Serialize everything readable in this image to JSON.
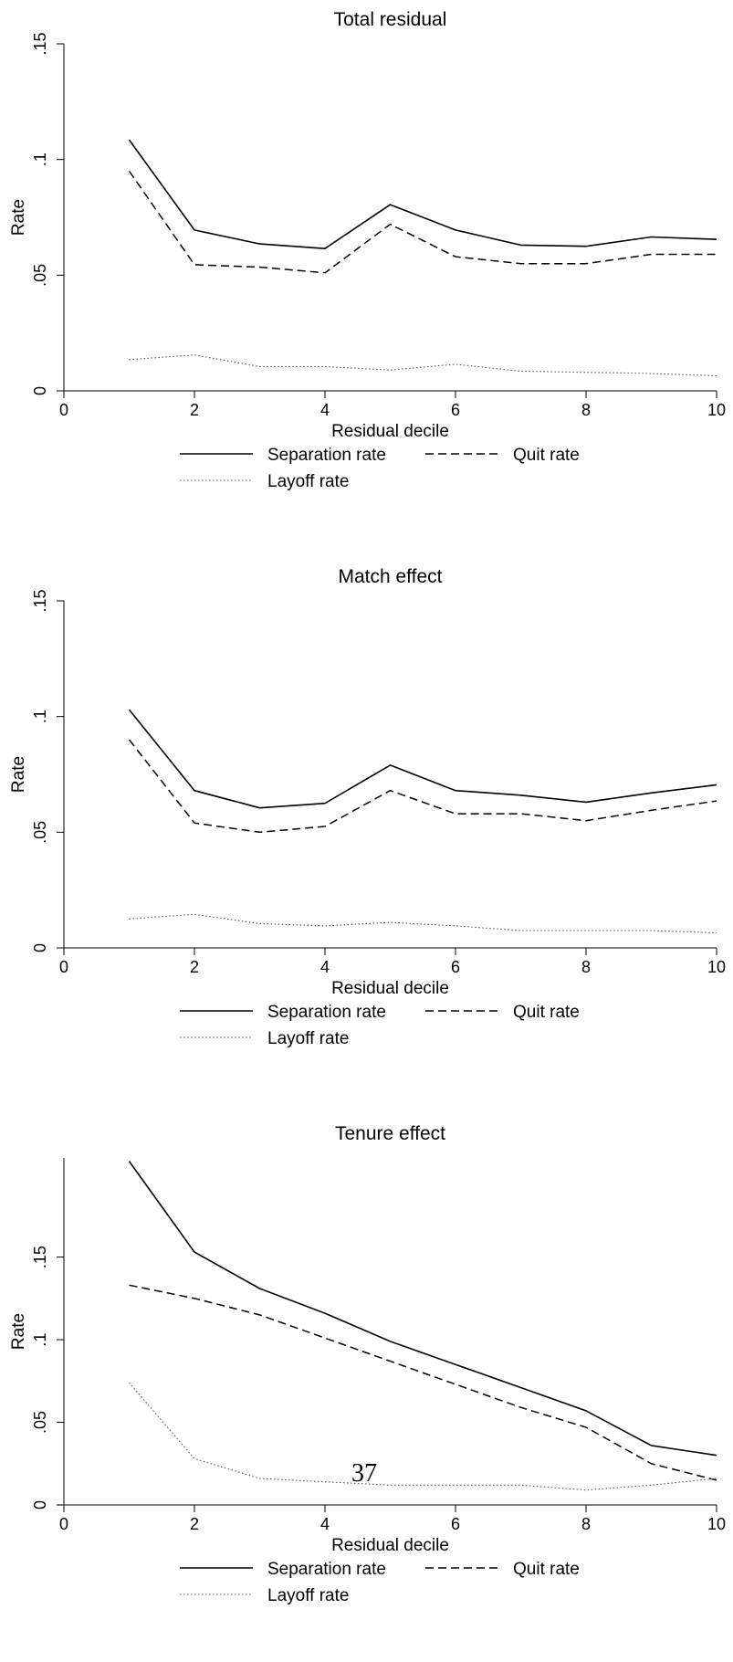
{
  "page_number": "37",
  "chart_data": [
    {
      "type": "line",
      "title": "Total residual",
      "xlabel": "Residual decile",
      "ylabel": "Rate",
      "xlim": [
        0,
        10
      ],
      "ylim": [
        0,
        0.15
      ],
      "x_ticks": [
        0,
        2,
        4,
        6,
        8,
        10
      ],
      "x_tick_labels": [
        "0",
        "2",
        "4",
        "6",
        "8",
        "10"
      ],
      "y_ticks": [
        0,
        0.05,
        0.1,
        0.15
      ],
      "y_tick_labels": [
        "0",
        ".05",
        ".1",
        ".15"
      ],
      "grid": false,
      "legend_position": "bottom",
      "x": [
        1,
        2,
        3,
        4,
        5,
        6,
        7,
        8,
        9,
        10
      ],
      "series": [
        {
          "name": "Separation rate",
          "style": "solid",
          "values": [
            0.1085,
            0.0695,
            0.0635,
            0.0615,
            0.0805,
            0.0695,
            0.063,
            0.0625,
            0.0665,
            0.0655
          ]
        },
        {
          "name": "Quit rate",
          "style": "dashed",
          "values": [
            0.095,
            0.0545,
            0.0535,
            0.051,
            0.072,
            0.058,
            0.055,
            0.055,
            0.059,
            0.059
          ]
        },
        {
          "name": "Layoff rate",
          "style": "dotted",
          "values": [
            0.0135,
            0.0155,
            0.0105,
            0.0105,
            0.009,
            0.0115,
            0.0085,
            0.008,
            0.0075,
            0.0065
          ]
        }
      ]
    },
    {
      "type": "line",
      "title": "Match effect",
      "xlabel": "Residual decile",
      "ylabel": "Rate",
      "xlim": [
        0,
        10
      ],
      "ylim": [
        0,
        0.15
      ],
      "x_ticks": [
        0,
        2,
        4,
        6,
        8,
        10
      ],
      "x_tick_labels": [
        "0",
        "2",
        "4",
        "6",
        "8",
        "10"
      ],
      "y_ticks": [
        0,
        0.05,
        0.1,
        0.15
      ],
      "y_tick_labels": [
        "0",
        ".05",
        ".1",
        ".15"
      ],
      "grid": false,
      "legend_position": "bottom",
      "x": [
        1,
        2,
        3,
        4,
        5,
        6,
        7,
        8,
        9,
        10
      ],
      "series": [
        {
          "name": "Separation rate",
          "style": "solid",
          "values": [
            0.103,
            0.068,
            0.0605,
            0.0625,
            0.079,
            0.068,
            0.066,
            0.063,
            0.067,
            0.0705
          ]
        },
        {
          "name": "Quit rate",
          "style": "dashed",
          "values": [
            0.09,
            0.054,
            0.05,
            0.0525,
            0.068,
            0.058,
            0.058,
            0.055,
            0.0595,
            0.0635
          ]
        },
        {
          "name": "Layoff rate",
          "style": "dotted",
          "values": [
            0.0125,
            0.0145,
            0.0105,
            0.0095,
            0.011,
            0.0095,
            0.0075,
            0.0075,
            0.0075,
            0.0065
          ]
        }
      ]
    },
    {
      "type": "line",
      "title": "Tenure effect",
      "xlabel": "Residual decile",
      "ylabel": "Rate",
      "xlim": [
        0,
        10
      ],
      "ylim": [
        0,
        0.21
      ],
      "x_ticks": [
        0,
        2,
        4,
        6,
        8,
        10
      ],
      "x_tick_labels": [
        "0",
        "2",
        "4",
        "6",
        "8",
        "10"
      ],
      "y_ticks": [
        0,
        0.05,
        0.1,
        0.15
      ],
      "y_tick_labels": [
        "0",
        ".05",
        ".1",
        ".15"
      ],
      "grid": false,
      "legend_position": "bottom",
      "x": [
        1,
        2,
        3,
        4,
        5,
        6,
        7,
        8,
        9,
        10
      ],
      "series": [
        {
          "name": "Separation rate",
          "style": "solid",
          "values": [
            0.208,
            0.153,
            0.131,
            0.116,
            0.099,
            0.085,
            0.071,
            0.057,
            0.036,
            0.03
          ]
        },
        {
          "name": "Quit rate",
          "style": "dashed",
          "values": [
            0.133,
            0.125,
            0.115,
            0.101,
            0.087,
            0.073,
            0.059,
            0.047,
            0.025,
            0.015
          ]
        },
        {
          "name": "Layoff rate",
          "style": "dotted",
          "values": [
            0.074,
            0.028,
            0.016,
            0.014,
            0.012,
            0.012,
            0.012,
            0.009,
            0.012,
            0.016
          ]
        }
      ]
    }
  ]
}
